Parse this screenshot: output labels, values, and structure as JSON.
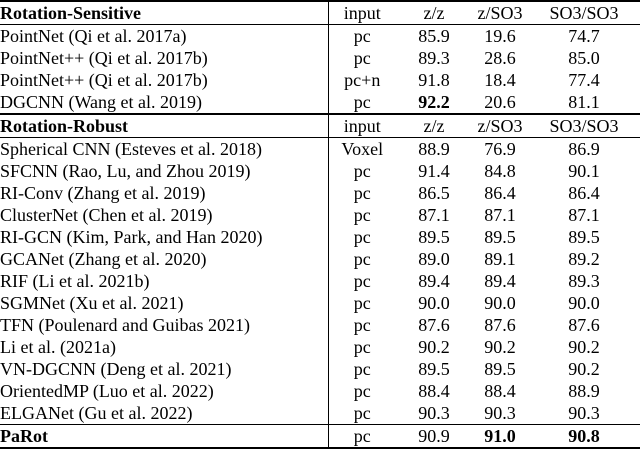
{
  "table": {
    "column_keys": [
      "method",
      "input",
      "z-z",
      "z-so3",
      "so3-so3"
    ],
    "rows": [
      {
        "type": "header",
        "cells": [
          "Rotation-Sensitive",
          "input",
          "z/z",
          "z/SO3",
          "SO3/SO3"
        ],
        "bold": [
          true,
          false,
          false,
          false,
          false
        ]
      },
      {
        "type": "data",
        "cells": [
          "PointNet (Qi et al. 2017a)",
          "pc",
          "85.9",
          "19.6",
          "74.7"
        ],
        "bold": [
          false,
          false,
          false,
          false,
          false
        ]
      },
      {
        "type": "data",
        "cells": [
          "PointNet++ (Qi et al. 2017b)",
          "pc",
          "89.3",
          "28.6",
          "85.0"
        ],
        "bold": [
          false,
          false,
          false,
          false,
          false
        ]
      },
      {
        "type": "data",
        "cells": [
          "PointNet++ (Qi et al. 2017b)",
          "pc+n",
          "91.8",
          "18.4",
          "77.4"
        ],
        "bold": [
          false,
          false,
          false,
          false,
          false
        ]
      },
      {
        "type": "data",
        "cells": [
          "DGCNN (Wang et al. 2019)",
          "pc",
          "92.2",
          "20.6",
          "81.1"
        ],
        "bold": [
          false,
          false,
          true,
          false,
          false
        ]
      },
      {
        "type": "header",
        "cells": [
          "Rotation-Robust",
          "input",
          "z/z",
          "z/SO3",
          "SO3/SO3"
        ],
        "bold": [
          true,
          false,
          false,
          false,
          false
        ]
      },
      {
        "type": "data",
        "cells": [
          "Spherical CNN (Esteves et al. 2018)",
          "Voxel",
          "88.9",
          "76.9",
          "86.9"
        ],
        "bold": [
          false,
          false,
          false,
          false,
          false
        ]
      },
      {
        "type": "data",
        "cells": [
          "SFCNN (Rao, Lu, and Zhou 2019)",
          "pc",
          "91.4",
          "84.8",
          "90.1"
        ],
        "bold": [
          false,
          false,
          false,
          false,
          false
        ]
      },
      {
        "type": "data",
        "cells": [
          "RI-Conv (Zhang et al. 2019)",
          "pc",
          "86.5",
          "86.4",
          "86.4"
        ],
        "bold": [
          false,
          false,
          false,
          false,
          false
        ]
      },
      {
        "type": "data",
        "cells": [
          "ClusterNet (Chen et al. 2019)",
          "pc",
          "87.1",
          "87.1",
          "87.1"
        ],
        "bold": [
          false,
          false,
          false,
          false,
          false
        ]
      },
      {
        "type": "data",
        "cells": [
          "RI-GCN (Kim, Park, and Han 2020)",
          "pc",
          "89.5",
          "89.5",
          "89.5"
        ],
        "bold": [
          false,
          false,
          false,
          false,
          false
        ]
      },
      {
        "type": "data",
        "cells": [
          "GCANet (Zhang et al. 2020)",
          "pc",
          "89.0",
          "89.1",
          "89.2"
        ],
        "bold": [
          false,
          false,
          false,
          false,
          false
        ]
      },
      {
        "type": "data",
        "cells": [
          "RIF (Li et al. 2021b)",
          "pc",
          "89.4",
          "89.4",
          "89.3"
        ],
        "bold": [
          false,
          false,
          false,
          false,
          false
        ]
      },
      {
        "type": "data",
        "cells": [
          "SGMNet (Xu et al. 2021)",
          "pc",
          "90.0",
          "90.0",
          "90.0"
        ],
        "bold": [
          false,
          false,
          false,
          false,
          false
        ]
      },
      {
        "type": "data",
        "cells": [
          "TFN (Poulenard and Guibas 2021)",
          "pc",
          "87.6",
          "87.6",
          "87.6"
        ],
        "bold": [
          false,
          false,
          false,
          false,
          false
        ]
      },
      {
        "type": "data",
        "cells": [
          "Li et al. (2021a)",
          "pc",
          "90.2",
          "90.2",
          "90.2"
        ],
        "bold": [
          false,
          false,
          false,
          false,
          false
        ]
      },
      {
        "type": "data",
        "cells": [
          "VN-DGCNN (Deng et al. 2021)",
          "pc",
          "89.5",
          "89.5",
          "90.2"
        ],
        "bold": [
          false,
          false,
          false,
          false,
          false
        ]
      },
      {
        "type": "data",
        "cells": [
          "OrientedMP (Luo et al. 2022)",
          "pc",
          "88.4",
          "88.4",
          "88.9"
        ],
        "bold": [
          false,
          false,
          false,
          false,
          false
        ]
      },
      {
        "type": "data",
        "cells": [
          "ELGANet (Gu et al. 2022)",
          "pc",
          "90.3",
          "90.3",
          "90.3"
        ],
        "bold": [
          false,
          false,
          false,
          false,
          false
        ]
      },
      {
        "type": "final",
        "cells": [
          "PaRot",
          "pc",
          "90.9",
          "91.0",
          "90.8"
        ],
        "bold": [
          true,
          false,
          false,
          true,
          true
        ]
      }
    ]
  }
}
